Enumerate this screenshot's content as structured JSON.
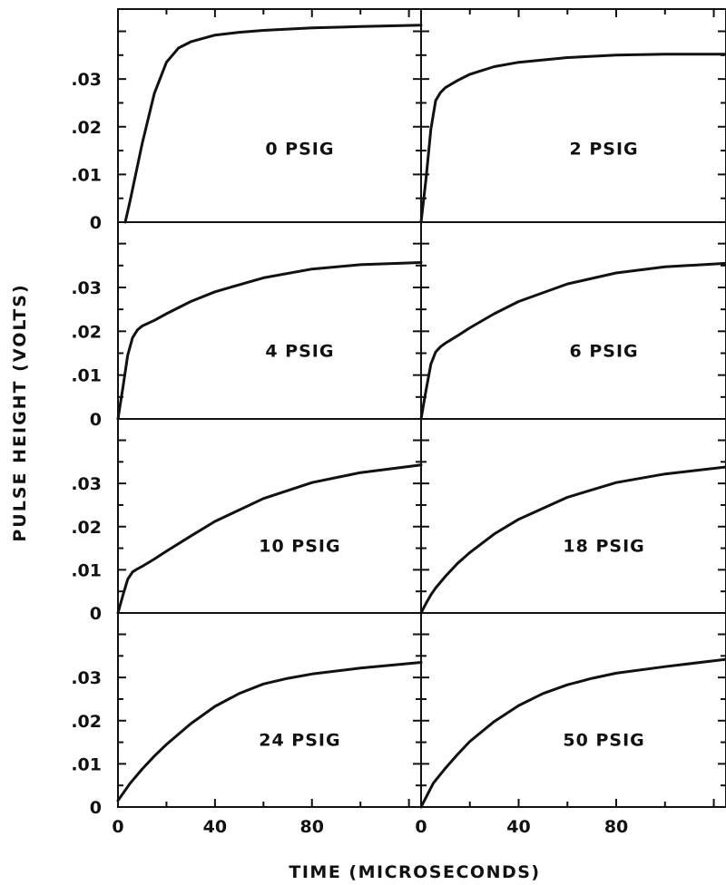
{
  "chart_data": {
    "type": "line",
    "ylabel": "PULSE HEIGHT  (VOLTS)",
    "xlabel": "TIME  (MICROSECONDS)",
    "x_tick_labels": [
      "0",
      "40",
      "80"
    ],
    "y_tick_labels": [
      "0",
      ".01",
      ".02",
      ".03"
    ],
    "xlim": [
      0,
      125
    ],
    "ylim": [
      0,
      0.042
    ],
    "grid": false,
    "colors": {
      "line": "#111111",
      "background": "#ffffff"
    },
    "panels": [
      {
        "label": "0 PSIG",
        "series": [
          {
            "x": [
              3,
              5,
              10,
              15,
              20,
              25,
              30,
              40,
              50,
              60,
              80,
              100,
              125
            ],
            "y": [
              0,
              0.0045,
              0.0165,
              0.027,
              0.0335,
              0.0365,
              0.0378,
              0.0392,
              0.0398,
              0.0402,
              0.0407,
              0.041,
              0.0413
            ]
          }
        ]
      },
      {
        "label": "2 PSIG",
        "series": [
          {
            "x": [
              0,
              2,
              4,
              6,
              8,
              10,
              15,
              20,
              30,
              40,
              60,
              80,
              100,
              125
            ],
            "y": [
              0,
              0.009,
              0.0195,
              0.0255,
              0.0272,
              0.0282,
              0.0297,
              0.031,
              0.0326,
              0.0335,
              0.0345,
              0.035,
              0.0352,
              0.0352
            ]
          }
        ]
      },
      {
        "label": "4 PSIG",
        "series": [
          {
            "x": [
              0,
              2,
              4,
              6,
              8,
              10,
              15,
              20,
              30,
              40,
              60,
              80,
              100,
              125
            ],
            "y": [
              0,
              0.007,
              0.0145,
              0.0185,
              0.0203,
              0.0212,
              0.0225,
              0.024,
              0.0268,
              0.029,
              0.0322,
              0.0342,
              0.0352,
              0.0357
            ]
          }
        ]
      },
      {
        "label": "6 PSIG",
        "series": [
          {
            "x": [
              0,
              2,
              4,
              6,
              8,
              10,
              15,
              20,
              30,
              40,
              60,
              80,
              100,
              125
            ],
            "y": [
              0,
              0.0065,
              0.0125,
              0.0153,
              0.0165,
              0.0173,
              0.019,
              0.0208,
              0.024,
              0.0268,
              0.0308,
              0.0333,
              0.0347,
              0.0355
            ]
          }
        ]
      },
      {
        "label": "10 PSIG",
        "series": [
          {
            "x": [
              0,
              2,
              4,
              6,
              8,
              10,
              15,
              20,
              30,
              40,
              60,
              80,
              100,
              125
            ],
            "y": [
              0,
              0.004,
              0.0078,
              0.0095,
              0.0102,
              0.0108,
              0.0125,
              0.0143,
              0.0178,
              0.0212,
              0.0265,
              0.0302,
              0.0325,
              0.0343
            ]
          }
        ]
      },
      {
        "label": "18 PSIG",
        "series": [
          {
            "x": [
              0,
              2,
              4,
              6,
              10,
              15,
              20,
              30,
              40,
              60,
              80,
              100,
              125
            ],
            "y": [
              0,
              0.0022,
              0.0042,
              0.0058,
              0.0085,
              0.0115,
              0.014,
              0.0183,
              0.0217,
              0.0268,
              0.0302,
              0.0322,
              0.0338
            ]
          }
        ]
      },
      {
        "label": "24 PSIG",
        "series": [
          {
            "x": [
              0,
              5,
              10,
              15,
              20,
              30,
              40,
              50,
              60,
              70,
              80,
              100,
              125
            ],
            "y": [
              0.0015,
              0.0055,
              0.0088,
              0.0118,
              0.0145,
              0.0193,
              0.0233,
              0.0263,
              0.0285,
              0.0298,
              0.0308,
              0.0322,
              0.0335
            ]
          }
        ]
      },
      {
        "label": "50 PSIG",
        "series": [
          {
            "x": [
              0,
              5,
              10,
              15,
              20,
              30,
              40,
              50,
              60,
              70,
              80,
              100,
              125
            ],
            "y": [
              0,
              0.0055,
              0.009,
              0.0122,
              0.0152,
              0.0198,
              0.0235,
              0.0263,
              0.0283,
              0.0298,
              0.031,
              0.0325,
              0.0342
            ]
          }
        ]
      }
    ]
  }
}
